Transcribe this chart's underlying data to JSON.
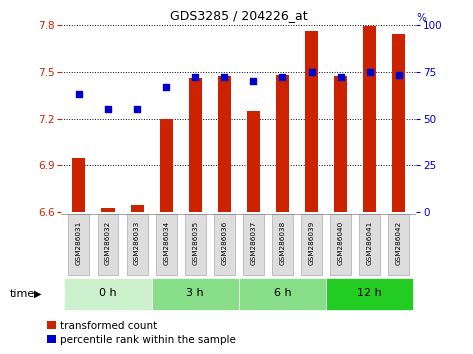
{
  "title": "GDS3285 / 204226_at",
  "samples": [
    "GSM286031",
    "GSM286032",
    "GSM286033",
    "GSM286034",
    "GSM286035",
    "GSM286036",
    "GSM286037",
    "GSM286038",
    "GSM286039",
    "GSM286040",
    "GSM286041",
    "GSM286042"
  ],
  "transformed_count": [
    6.95,
    6.63,
    6.65,
    7.2,
    7.46,
    7.47,
    7.25,
    7.48,
    7.76,
    7.47,
    7.79,
    7.74
  ],
  "percentile_rank": [
    63,
    55,
    55,
    67,
    72,
    72,
    70,
    72,
    75,
    72,
    75,
    73
  ],
  "time_group_defs": [
    {
      "label": "0 h",
      "indices": [
        0,
        1,
        2
      ],
      "color": "#ccf0cc"
    },
    {
      "label": "3 h",
      "indices": [
        3,
        4,
        5
      ],
      "color": "#88dd88"
    },
    {
      "label": "6 h",
      "indices": [
        6,
        7,
        8
      ],
      "color": "#88dd88"
    },
    {
      "label": "12 h",
      "indices": [
        9,
        10,
        11
      ],
      "color": "#22cc22"
    }
  ],
  "ylim_left": [
    6.6,
    7.8
  ],
  "ylim_right": [
    0,
    100
  ],
  "yticks_left": [
    6.6,
    6.9,
    7.2,
    7.5,
    7.8
  ],
  "yticks_right": [
    0,
    25,
    50,
    75,
    100
  ],
  "bar_color": "#cc2200",
  "dot_color": "#0000cc",
  "bar_bottom": 6.6,
  "legend_items": [
    "transformed count",
    "percentile rank within the sample"
  ]
}
